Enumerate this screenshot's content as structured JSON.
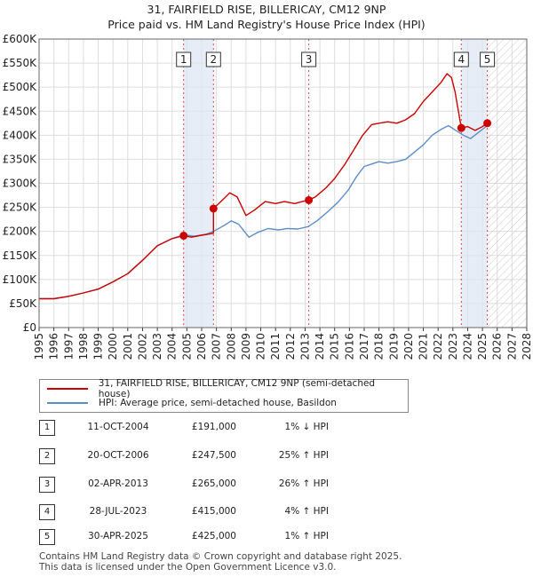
{
  "chart_data": {
    "type": "line",
    "title": "31, FAIRFIELD RISE, BILLERICAY, CM12 9NP",
    "subtitle": "Price paid vs. HM Land Registry's House Price Index (HPI)",
    "xlabel": "",
    "ylabel": "",
    "xlim": [
      1995,
      2028
    ],
    "ylim": [
      0,
      600000
    ],
    "x_ticks": [
      "1995",
      "1996",
      "1997",
      "1998",
      "1999",
      "2000",
      "2001",
      "2002",
      "2003",
      "2004",
      "2005",
      "2006",
      "2007",
      "2008",
      "2009",
      "2010",
      "2011",
      "2012",
      "2013",
      "2014",
      "2015",
      "2016",
      "2017",
      "2018",
      "2019",
      "2020",
      "2021",
      "2022",
      "2023",
      "2024",
      "2025",
      "2026",
      "2027",
      "2028"
    ],
    "y_ticks": [
      {
        "value": 0,
        "label": "£0"
      },
      {
        "value": 50000,
        "label": "£50K"
      },
      {
        "value": 100000,
        "label": "£100K"
      },
      {
        "value": 150000,
        "label": "£150K"
      },
      {
        "value": 200000,
        "label": "£200K"
      },
      {
        "value": 250000,
        "label": "£250K"
      },
      {
        "value": 300000,
        "label": "£300K"
      },
      {
        "value": 350000,
        "label": "£350K"
      },
      {
        "value": 400000,
        "label": "£400K"
      },
      {
        "value": 450000,
        "label": "£450K"
      },
      {
        "value": 500000,
        "label": "£500K"
      },
      {
        "value": 550000,
        "label": "£550K"
      },
      {
        "value": 600000,
        "label": "£600K"
      }
    ],
    "future_shade_from": 2025.33,
    "series": [
      {
        "name": "31, FAIRFIELD RISE, BILLERICAY, CM12 9NP (semi-detached house)",
        "color": "#cc0000",
        "points": [
          [
            1995.0,
            60000
          ],
          [
            1996.0,
            60000
          ],
          [
            1997.0,
            65000
          ],
          [
            1998.0,
            72000
          ],
          [
            1999.0,
            80000
          ],
          [
            2000.0,
            95000
          ],
          [
            2001.0,
            112000
          ],
          [
            2002.0,
            140000
          ],
          [
            2003.0,
            170000
          ],
          [
            2004.0,
            185000
          ],
          [
            2004.78,
            191000
          ],
          [
            2005.3,
            188000
          ],
          [
            2006.0,
            192000
          ],
          [
            2006.8,
            196000
          ],
          [
            2006.8,
            247500
          ],
          [
            2007.3,
            262000
          ],
          [
            2007.9,
            280000
          ],
          [
            2008.4,
            272000
          ],
          [
            2009.0,
            233000
          ],
          [
            2009.6,
            245000
          ],
          [
            2010.3,
            262000
          ],
          [
            2011.0,
            258000
          ],
          [
            2011.6,
            262000
          ],
          [
            2012.3,
            258000
          ],
          [
            2012.8,
            262000
          ],
          [
            2013.25,
            265000
          ],
          [
            2013.7,
            272000
          ],
          [
            2014.4,
            290000
          ],
          [
            2015.0,
            310000
          ],
          [
            2015.7,
            340000
          ],
          [
            2016.3,
            370000
          ],
          [
            2016.9,
            400000
          ],
          [
            2017.5,
            422000
          ],
          [
            2018.0,
            425000
          ],
          [
            2018.6,
            428000
          ],
          [
            2019.2,
            425000
          ],
          [
            2019.8,
            432000
          ],
          [
            2020.4,
            445000
          ],
          [
            2021.0,
            470000
          ],
          [
            2021.6,
            490000
          ],
          [
            2022.2,
            510000
          ],
          [
            2022.6,
            528000
          ],
          [
            2022.9,
            520000
          ],
          [
            2023.15,
            490000
          ],
          [
            2023.57,
            415000
          ],
          [
            2024.0,
            418000
          ],
          [
            2024.5,
            410000
          ],
          [
            2025.0,
            418000
          ],
          [
            2025.33,
            425000
          ]
        ]
      },
      {
        "name": "HPI: Average price, semi-detached house, Basildon",
        "color": "#5b8dc9",
        "points": [
          [
            1995.0,
            60000
          ],
          [
            1996.0,
            60000
          ],
          [
            1997.0,
            65000
          ],
          [
            1998.0,
            72000
          ],
          [
            1999.0,
            80000
          ],
          [
            2000.0,
            95000
          ],
          [
            2001.0,
            112000
          ],
          [
            2002.0,
            140000
          ],
          [
            2003.0,
            170000
          ],
          [
            2004.0,
            185000
          ],
          [
            2004.78,
            193000
          ],
          [
            2005.5,
            190000
          ],
          [
            2006.3,
            194000
          ],
          [
            2006.8,
            200000
          ],
          [
            2007.5,
            212000
          ],
          [
            2008.0,
            222000
          ],
          [
            2008.5,
            215000
          ],
          [
            2009.2,
            188000
          ],
          [
            2009.8,
            198000
          ],
          [
            2010.5,
            206000
          ],
          [
            2011.2,
            203000
          ],
          [
            2011.8,
            206000
          ],
          [
            2012.5,
            205000
          ],
          [
            2013.2,
            210000
          ],
          [
            2013.8,
            222000
          ],
          [
            2014.5,
            240000
          ],
          [
            2015.2,
            260000
          ],
          [
            2015.9,
            285000
          ],
          [
            2016.5,
            315000
          ],
          [
            2017.0,
            335000
          ],
          [
            2017.5,
            340000
          ],
          [
            2018.0,
            345000
          ],
          [
            2018.6,
            342000
          ],
          [
            2019.2,
            345000
          ],
          [
            2019.8,
            350000
          ],
          [
            2020.4,
            365000
          ],
          [
            2021.0,
            380000
          ],
          [
            2021.6,
            400000
          ],
          [
            2022.2,
            412000
          ],
          [
            2022.7,
            420000
          ],
          [
            2023.2,
            410000
          ],
          [
            2023.7,
            400000
          ],
          [
            2024.2,
            393000
          ],
          [
            2024.7,
            405000
          ],
          [
            2025.33,
            420000
          ]
        ]
      }
    ],
    "sales": [
      {
        "n": "1",
        "x": 2004.78,
        "price": 191000,
        "date": "11-OCT-2004",
        "price_label": "£191,000",
        "hpi": "1% ↓ HPI"
      },
      {
        "n": "2",
        "x": 2006.8,
        "price": 247500,
        "date": "20-OCT-2006",
        "price_label": "£247,500",
        "hpi": "25% ↑ HPI"
      },
      {
        "n": "3",
        "x": 2013.25,
        "price": 265000,
        "date": "02-APR-2013",
        "price_label": "£265,000",
        "hpi": "26% ↑ HPI"
      },
      {
        "n": "4",
        "x": 2023.57,
        "price": 415000,
        "date": "28-JUL-2023",
        "price_label": "£415,000",
        "hpi": "4% ↑ HPI"
      },
      {
        "n": "5",
        "x": 2025.33,
        "price": 425000,
        "date": "30-APR-2025",
        "price_label": "£425,000",
        "hpi": "1% ↑ HPI"
      }
    ]
  },
  "legend": {
    "property": "31, FAIRFIELD RISE, BILLERICAY, CM12 9NP (semi-detached house)",
    "hpi": "HPI: Average price, semi-detached house, Basildon"
  },
  "footer": {
    "line1": "Contains HM Land Registry data © Crown copyright and database right 2025.",
    "line2": "This data is licensed under the Open Government Licence v3.0."
  }
}
